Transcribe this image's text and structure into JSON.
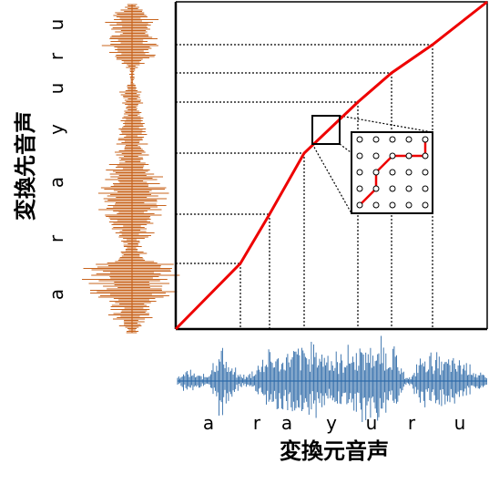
{
  "diagram": {
    "x_axis_title": "変換元音声",
    "y_axis_title": "変換先音声",
    "source_phonemes": [
      "a",
      "r",
      "a",
      "y",
      "u",
      "r",
      "u"
    ],
    "target_phonemes": [
      "a",
      "r",
      "a",
      "y",
      "u",
      "r",
      "u"
    ],
    "colors": {
      "alignment_path": "#ee0000",
      "source_waveform": "#2e6aa8",
      "target_waveform": "#c8641e",
      "grid_lines": "#000000"
    }
  }
}
